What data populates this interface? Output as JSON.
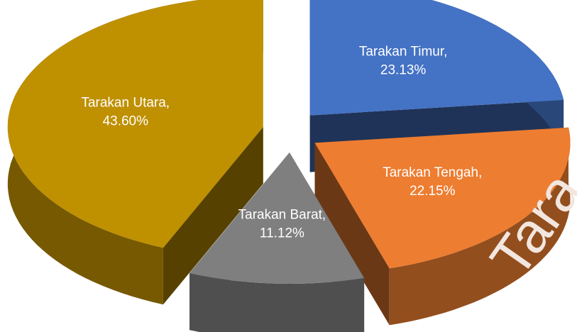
{
  "chart_data": {
    "type": "pie",
    "categories": [
      "Tarakan Timur,",
      "Tarakan Tengah,",
      "Tarakan Barat,",
      "Tarakan Utara,"
    ],
    "values": [
      23.13,
      22.15,
      11.12,
      43.6
    ],
    "value_labels": [
      "23.13%",
      "22.15%",
      "11.12%",
      "43.60%"
    ],
    "colors": [
      "#4472c4",
      "#ed7d31",
      "#7f7f7f",
      "#bf9000"
    ],
    "watermark": "Tara"
  }
}
